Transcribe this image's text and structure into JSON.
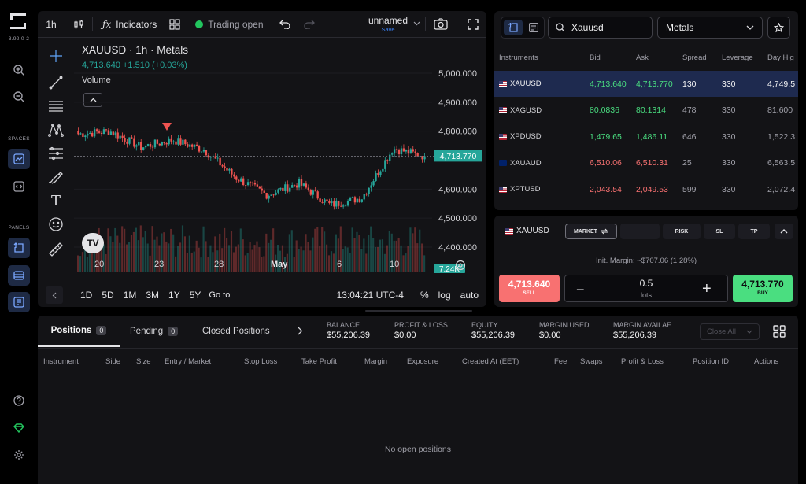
{
  "app": {
    "version": "3.92.0-2"
  },
  "rail": {
    "spaces_label": "SPACES",
    "panels_label": "PANELS"
  },
  "toolbar": {
    "interval": "1h",
    "indicators_label": "Indicators",
    "trading_status": "Trading open",
    "layout_name": "unnamed",
    "save_label": "Save"
  },
  "chart": {
    "symbol_line": "XAUUSD · 1h · Metals",
    "price_line": "4,713.640 +1.510 (+0.03%)",
    "volume_label": "Volume",
    "current_price_tag": "4,713.770",
    "volume_tag": "7.24K",
    "price_ticks": [
      "5,000.000",
      "4,900.000",
      "4,800.000",
      "4,600.000",
      "4,500.000",
      "4,400.000"
    ],
    "time_ticks": [
      "20",
      "23",
      "28",
      "May",
      "6",
      "10"
    ],
    "ranges": [
      "1D",
      "5D",
      "1M",
      "3M",
      "1Y",
      "5Y"
    ],
    "goto_label": "Go to",
    "clock": "13:04:21 UTC-4",
    "percent_label": "%",
    "log_label": "log",
    "auto_label": "auto",
    "up_color": "#26a69a",
    "down_color": "#ef5350"
  },
  "chart_data": {
    "type": "candlestick",
    "title": "XAUUSD · 1h · Metals",
    "ylim": [
      4360,
      5030
    ],
    "x_ticks": [
      "20",
      "23",
      "28",
      "May",
      "6",
      "10"
    ],
    "close_series": {
      "name": "XAUUSD",
      "x": [
        "20",
        "21",
        "22",
        "23",
        "25",
        "28",
        "30",
        "May",
        "4",
        "6",
        "8",
        "10"
      ],
      "values": [
        4790,
        4800,
        4745,
        4770,
        4735,
        4640,
        4580,
        4620,
        4545,
        4570,
        4740,
        4713.77
      ]
    }
  },
  "watchlist": {
    "search_value": "Xauusd",
    "category": "Metals",
    "columns": [
      "Instruments",
      "Bid",
      "Ask",
      "Spread",
      "Leverage",
      "Day Hig"
    ],
    "rows": [
      {
        "symbol": "XAUUSD",
        "flag": "us",
        "bid": "4,713.640",
        "ask": "4,713.770",
        "spread": "130",
        "leverage": "330",
        "day_high": "4,749.5",
        "dir": "up",
        "selected": true
      },
      {
        "symbol": "XAGUSD",
        "flag": "us",
        "bid": "80.0836",
        "ask": "80.1314",
        "spread": "478",
        "leverage": "330",
        "day_high": "81.600",
        "dir": "up",
        "selected": false
      },
      {
        "symbol": "XPDUSD",
        "flag": "us",
        "bid": "1,479.65",
        "ask": "1,486.11",
        "spread": "646",
        "leverage": "330",
        "day_high": "1,522.3",
        "dir": "up",
        "selected": false
      },
      {
        "symbol": "XAUAUD",
        "flag": "au",
        "bid": "6,510.06",
        "ask": "6,510.31",
        "spread": "25",
        "leverage": "330",
        "day_high": "6,563.5",
        "dir": "down",
        "selected": false
      },
      {
        "symbol": "XPTUSD",
        "flag": "us",
        "bid": "2,043.54",
        "ask": "2,049.53",
        "spread": "599",
        "leverage": "330",
        "day_high": "2,072.4",
        "dir": "down",
        "selected": false
      }
    ]
  },
  "order": {
    "symbol": "XAUUSD",
    "type_label": "MARKET",
    "risk_label": "RISK",
    "sl_label": "SL",
    "tp_label": "TP",
    "margin_text": "Init. Margin: ~$707.06 (1.28%)",
    "sell_price": "4,713.640",
    "sell_label": "SELL",
    "lots_value": "0.5",
    "lots_label": "lots",
    "buy_price": "4,713.770",
    "buy_label": "BUY"
  },
  "account": {
    "tabs": [
      {
        "label": "Positions",
        "count": "0"
      },
      {
        "label": "Pending",
        "count": "0"
      },
      {
        "label": "Closed Positions"
      }
    ],
    "stats": [
      {
        "label": "BALANCE",
        "value": "$55,206.39"
      },
      {
        "label": "PROFIT & LOSS",
        "value": "$0.00"
      },
      {
        "label": "EQUITY",
        "value": "$55,206.39"
      },
      {
        "label": "MARGIN USED",
        "value": "$0.00"
      },
      {
        "label": "MARGIN AVAILAE",
        "value": "$55,206.39"
      }
    ],
    "close_all_label": "Close All",
    "columns": [
      "Instrument",
      "Side",
      "Size",
      "Entry / Market",
      "Stop Loss",
      "Take Profit",
      "Margin",
      "Exposure",
      "Created At (EET)",
      "Fee",
      "Swaps",
      "Profit & Loss",
      "Position ID",
      "Actions"
    ],
    "empty_text": "No open positions"
  }
}
